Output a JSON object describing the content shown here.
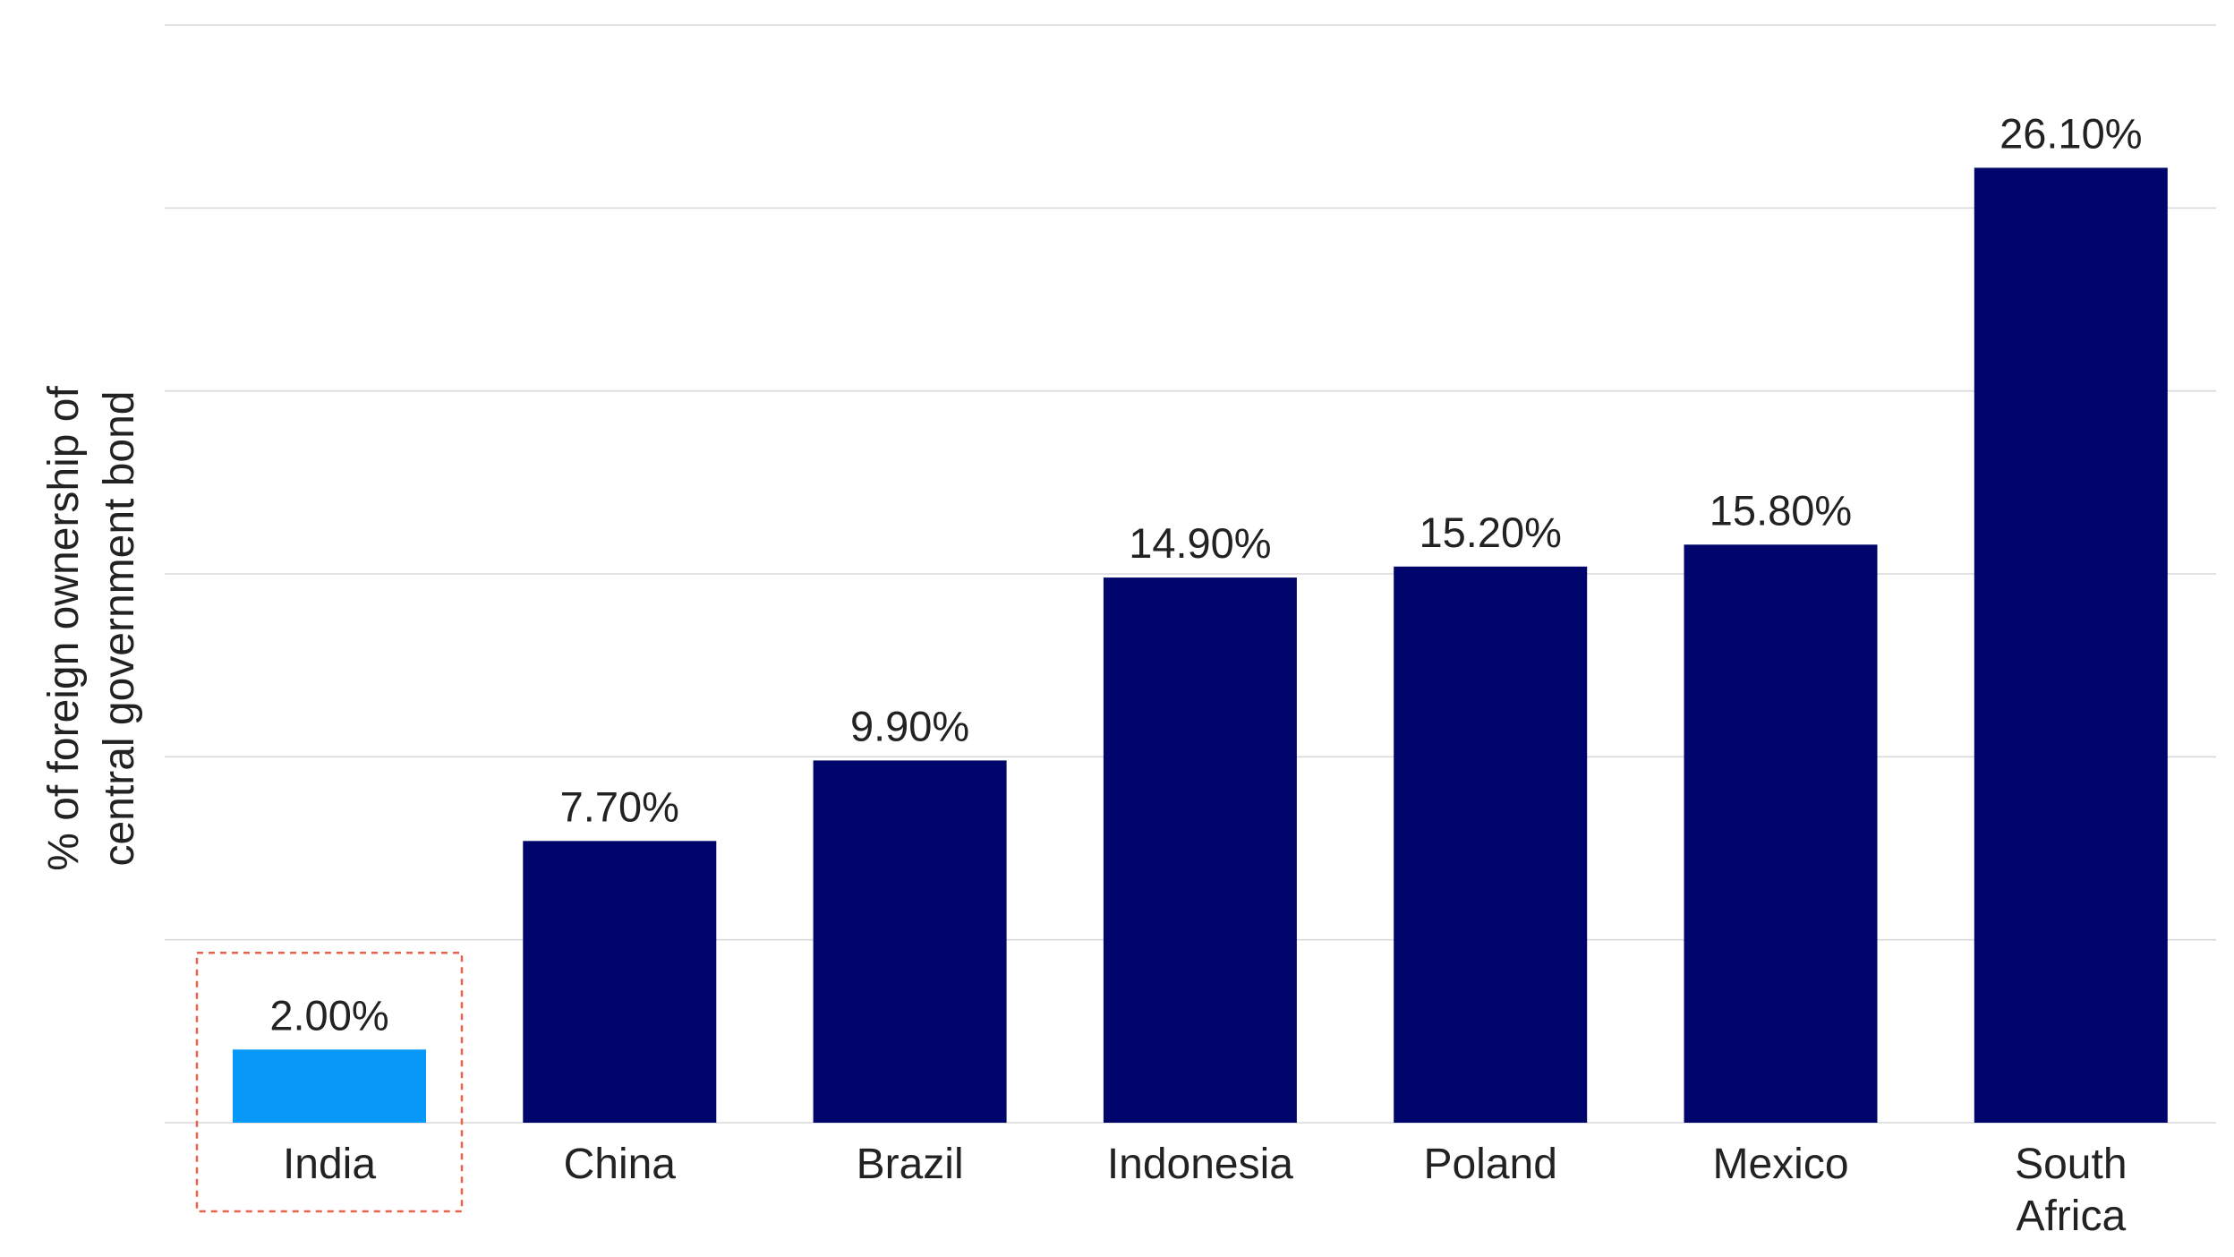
{
  "chart_data": {
    "type": "bar",
    "categories": [
      "India",
      "China",
      "Brazil",
      "Indonesia",
      "Poland",
      "Mexico",
      "South Africa"
    ],
    "category_lines": [
      [
        "India"
      ],
      [
        "China"
      ],
      [
        "Brazil"
      ],
      [
        "Indonesia"
      ],
      [
        "Poland"
      ],
      [
        "Mexico"
      ],
      [
        "South",
        "Africa"
      ]
    ],
    "values": [
      2.0,
      7.7,
      9.9,
      14.9,
      15.2,
      15.8,
      26.1
    ],
    "value_labels": [
      "2.00%",
      "7.70%",
      "9.90%",
      "14.90%",
      "15.20%",
      "15.80%",
      "26.10%"
    ],
    "ylabel_lines": [
      "% of foreign ownership of",
      "central government bond"
    ],
    "ylim": [
      0,
      30
    ],
    "grid": true,
    "highlight_category": "India",
    "colors": {
      "bar": "#00056B",
      "highlight_bar": "#0898F7",
      "grid": "#D9D9D9",
      "highlight_box": "#E8634B",
      "text": "#222222"
    }
  }
}
